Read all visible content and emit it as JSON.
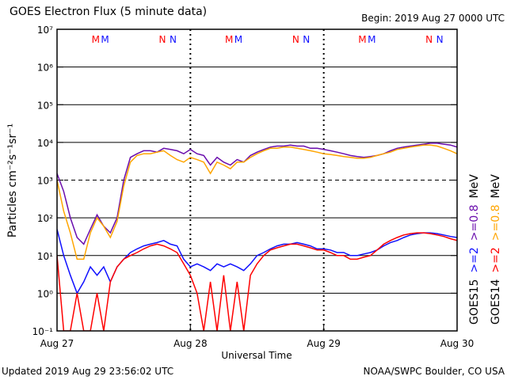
{
  "chart_data": {
    "type": "line",
    "title": "GOES Electron Flux (5 minute data)",
    "subtitle": "Begin: 2019 Aug 27 0000 UTC",
    "xlabel": "Universal Time",
    "ylabel": "Particles cm⁻²s⁻¹sr⁻¹",
    "footer_left": "Updated 2019 Aug 29 23:56:02 UTC",
    "footer_right": "NOAA/SWPC Boulder, CO USA",
    "log_scale": true,
    "grid": true,
    "threshold": 1000,
    "xlim": [
      0,
      3
    ],
    "xticks": [
      {
        "value": 0,
        "label": "Aug 27"
      },
      {
        "value": 1,
        "label": "Aug 28"
      },
      {
        "value": 2,
        "label": "Aug 29"
      },
      {
        "value": 3,
        "label": "Aug 30"
      }
    ],
    "ylim": [
      0.1,
      10000000
    ],
    "yticks": [
      {
        "value": 0.1,
        "label": "10⁻¹"
      },
      {
        "value": 1,
        "label": "10⁰"
      },
      {
        "value": 10,
        "label": "10¹"
      },
      {
        "value": 100,
        "label": "10²"
      },
      {
        "value": 1000,
        "label": "10³"
      },
      {
        "value": 10000,
        "label": "10⁴"
      },
      {
        "value": 100000,
        "label": "10⁵"
      },
      {
        "value": 1000000,
        "label": "10⁶"
      },
      {
        "value": 10000000,
        "label": "10⁷"
      }
    ],
    "legend_unit": "MeV",
    "orbit_markers": [
      {
        "label": "M",
        "x": 0.29,
        "color": "#ff0000"
      },
      {
        "label": "M",
        "x": 0.36,
        "color": "#1010ff"
      },
      {
        "label": "N",
        "x": 0.79,
        "color": "#ff0000"
      },
      {
        "label": "N",
        "x": 0.87,
        "color": "#1010ff"
      },
      {
        "label": "M",
        "x": 1.29,
        "color": "#ff0000"
      },
      {
        "label": "M",
        "x": 1.36,
        "color": "#1010ff"
      },
      {
        "label": "N",
        "x": 1.79,
        "color": "#ff0000"
      },
      {
        "label": "N",
        "x": 1.87,
        "color": "#1010ff"
      },
      {
        "label": "M",
        "x": 2.29,
        "color": "#ff0000"
      },
      {
        "label": "M",
        "x": 2.36,
        "color": "#1010ff"
      },
      {
        "label": "N",
        "x": 2.79,
        "color": "#ff0000"
      },
      {
        "label": "N",
        "x": 2.87,
        "color": "#1010ff"
      }
    ],
    "x": [
      0,
      0.05,
      0.1,
      0.15,
      0.2,
      0.25,
      0.3,
      0.35,
      0.4,
      0.45,
      0.5,
      0.55,
      0.6,
      0.65,
      0.7,
      0.75,
      0.8,
      0.85,
      0.9,
      0.95,
      1,
      1.05,
      1.1,
      1.15,
      1.2,
      1.25,
      1.3,
      1.35,
      1.4,
      1.45,
      1.5,
      1.55,
      1.6,
      1.65,
      1.7,
      1.75,
      1.8,
      1.85,
      1.9,
      1.95,
      2,
      2.05,
      2.1,
      2.15,
      2.2,
      2.25,
      2.3,
      2.35,
      2.4,
      2.45,
      2.5,
      2.55,
      2.6,
      2.65,
      2.7,
      2.75,
      2.8,
      2.85,
      2.9,
      2.95,
      3
    ],
    "series": [
      {
        "name": ">=2",
        "satellite": "GOES15",
        "color": "#1010ff",
        "values": [
          50,
          10,
          3,
          1,
          2,
          5,
          3,
          5,
          2,
          5,
          8,
          12,
          15,
          18,
          20,
          22,
          25,
          20,
          18,
          8,
          5,
          6,
          5,
          4,
          6,
          5,
          6,
          5,
          4,
          6,
          10,
          12,
          15,
          18,
          20,
          20,
          22,
          20,
          18,
          15,
          15,
          14,
          12,
          12,
          10,
          10,
          11,
          12,
          14,
          18,
          22,
          25,
          30,
          35,
          38,
          40,
          40,
          38,
          35,
          32,
          30
        ]
      },
      {
        "name": ">=0.8",
        "satellite": "GOES15",
        "color": "#6a0dad",
        "values": [
          1500,
          500,
          100,
          30,
          20,
          50,
          120,
          60,
          40,
          100,
          1000,
          4000,
          5000,
          6000,
          6000,
          5500,
          7000,
          6500,
          6000,
          5000,
          6500,
          5000,
          4500,
          2500,
          4000,
          3000,
          2500,
          3500,
          3000,
          4500,
          5500,
          6500,
          7500,
          8000,
          8000,
          8500,
          8000,
          8000,
          7000,
          7000,
          6500,
          6000,
          5500,
          5000,
          4500,
          4200,
          4000,
          4200,
          4500,
          5000,
          6000,
          7000,
          7500,
          8000,
          8500,
          9000,
          9500,
          9500,
          9000,
          8500,
          7500
        ]
      },
      {
        "name": ">=2",
        "satellite": "GOES14",
        "color": "#ff0000",
        "values": [
          10,
          0.1,
          0.1,
          1,
          0.1,
          0.1,
          1,
          0.1,
          2,
          5,
          8,
          10,
          12,
          15,
          18,
          20,
          18,
          15,
          12,
          6,
          3,
          1,
          0.1,
          2,
          0.1,
          3,
          0.1,
          2,
          0.1,
          3,
          6,
          10,
          14,
          16,
          18,
          20,
          20,
          18,
          16,
          14,
          14,
          12,
          10,
          10,
          8,
          8,
          9,
          10,
          14,
          20,
          25,
          30,
          35,
          38,
          40,
          40,
          38,
          35,
          32,
          28,
          25
        ]
      },
      {
        "name": ">=0.8",
        "satellite": "GOES14",
        "color": "#ffa500",
        "values": [
          1000,
          150,
          40,
          8,
          8,
          40,
          100,
          60,
          30,
          80,
          700,
          3000,
          4500,
          5000,
          5000,
          5500,
          6000,
          4500,
          3500,
          3000,
          4000,
          3500,
          3000,
          1500,
          3000,
          2500,
          2000,
          3000,
          3000,
          4000,
          5000,
          6000,
          7000,
          7000,
          7500,
          7500,
          7000,
          6500,
          6000,
          5500,
          5000,
          4800,
          4500,
          4200,
          4000,
          3800,
          3800,
          4000,
          4500,
          5000,
          5500,
          6500,
          7000,
          7500,
          8000,
          8500,
          8500,
          8000,
          7000,
          6000,
          5000
        ]
      }
    ]
  }
}
